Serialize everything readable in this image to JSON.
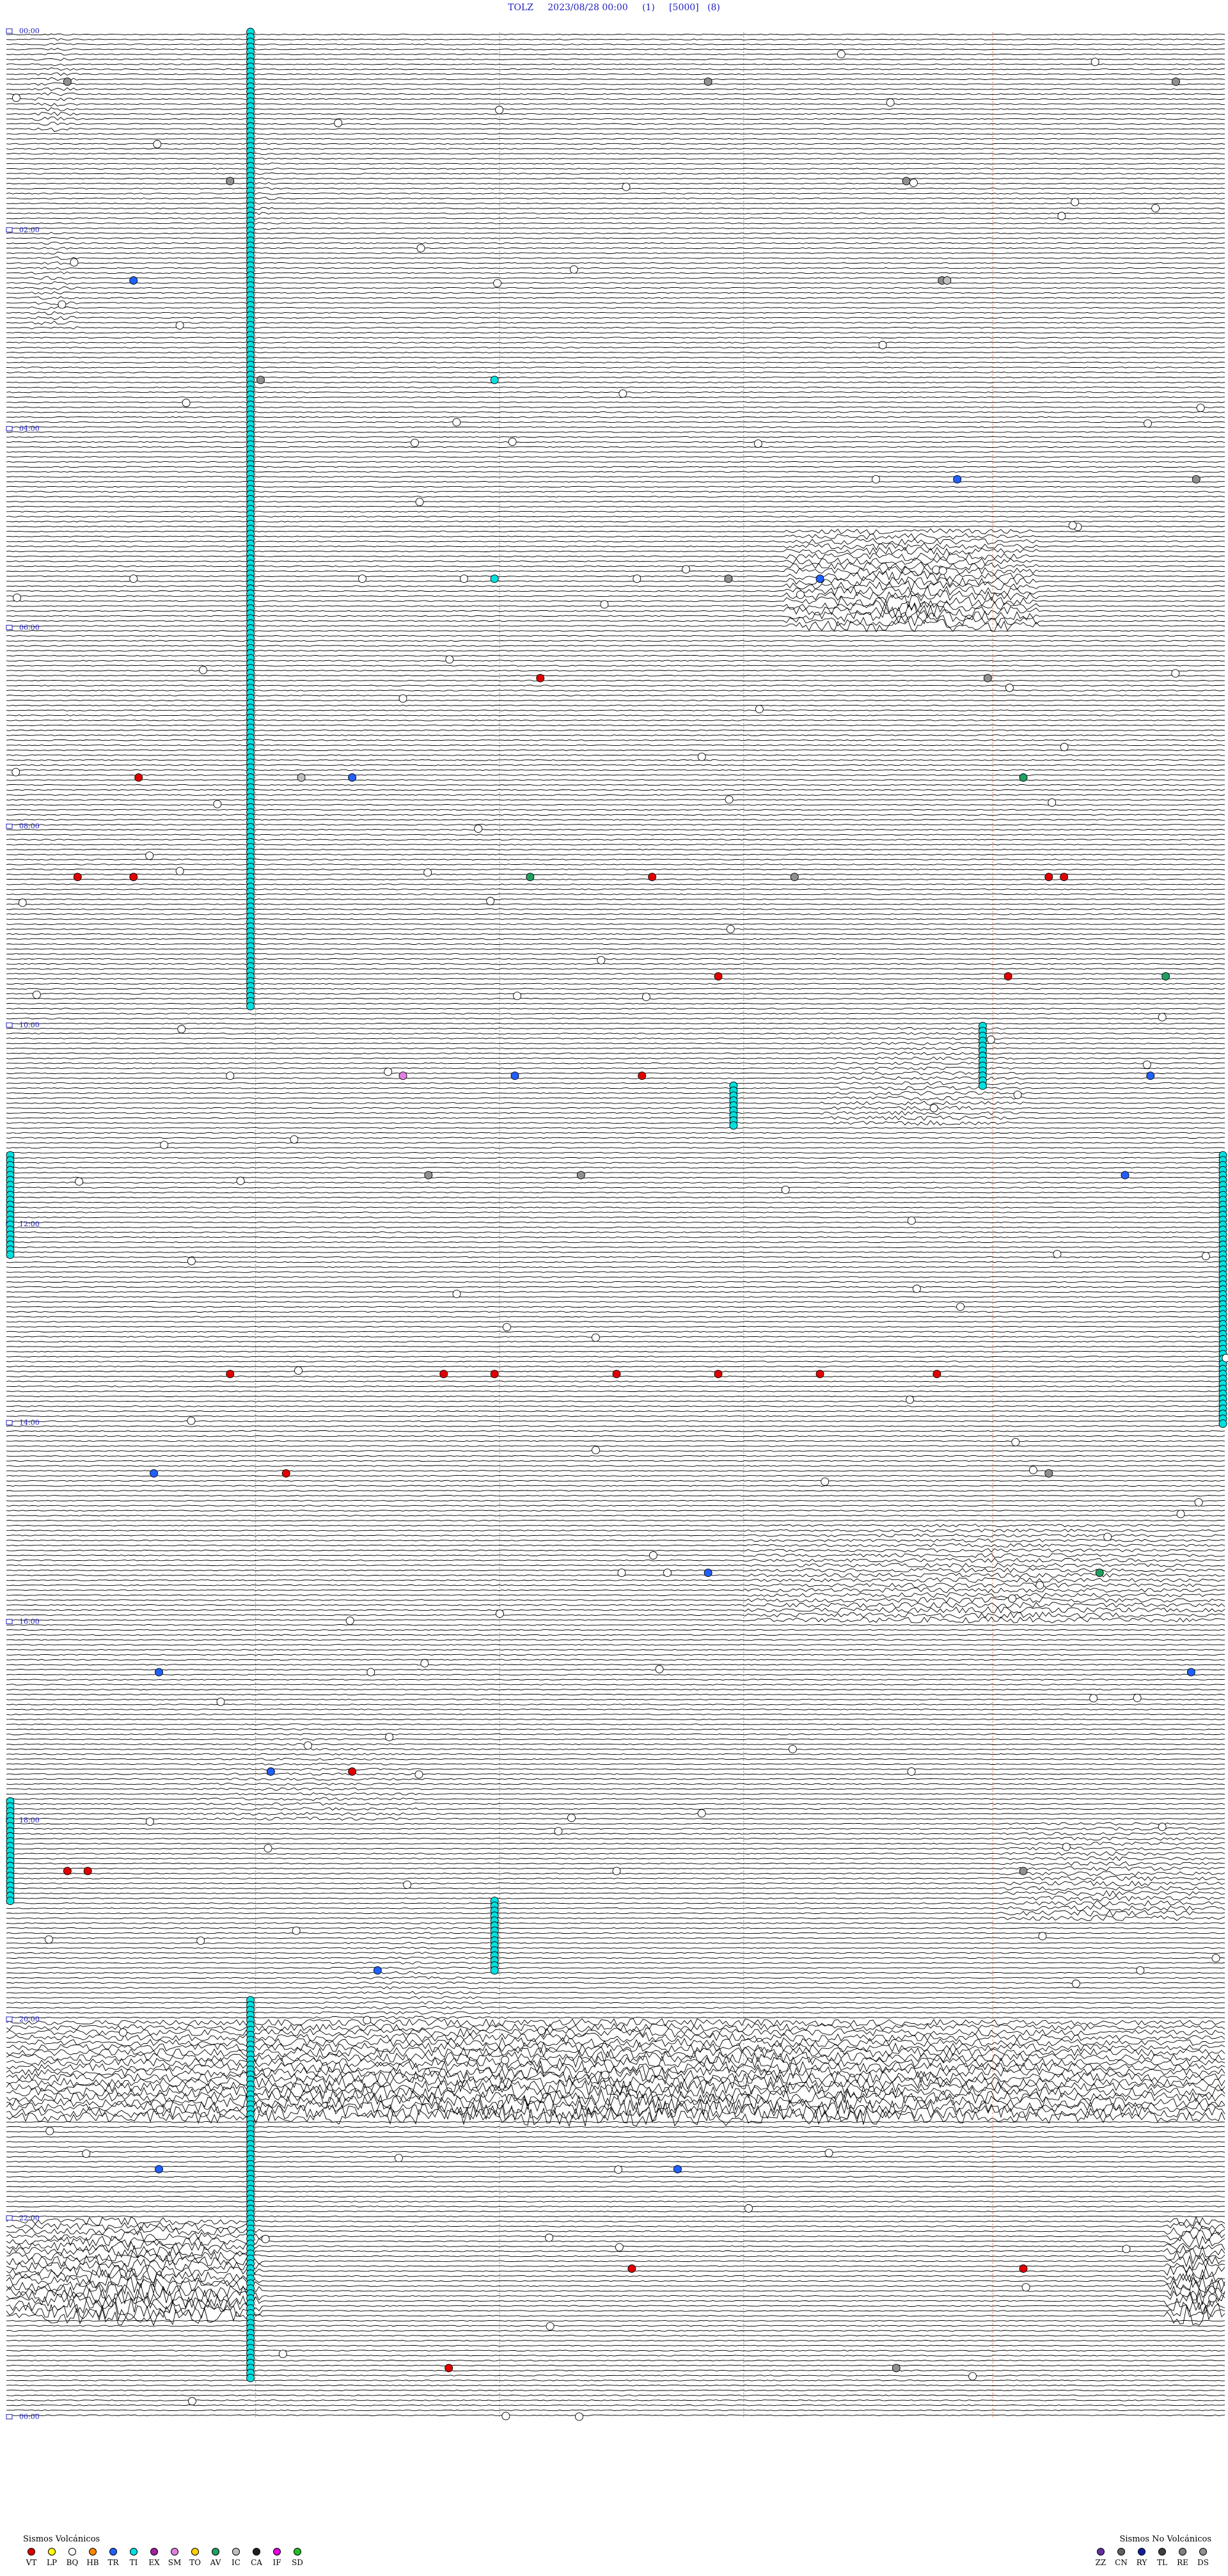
{
  "chart_data": {
    "type": "line",
    "title": "TOLZ     2023/08/28 00:00     (1)     [5000]   (8)",
    "station": "TOLZ",
    "date": "2023/08/28 00:00",
    "rows": 24,
    "hour_labels": [
      "00:00",
      "02:00",
      "04:00",
      "06:00",
      "08:00",
      "10:00",
      "12:00",
      "14:00",
      "16:00",
      "18:00",
      "20:00",
      "22:00",
      "00:00"
    ],
    "row_hours": 2,
    "trace_lines_per_row": 20,
    "bursts": [
      {
        "row": 0,
        "start": 0.5,
        "end": 1.4,
        "amp": 3
      },
      {
        "row": 1,
        "start": 4.8,
        "end": 5.4,
        "amp": 2
      },
      {
        "row": 2,
        "start": 0.5,
        "end": 1.4,
        "amp": 3
      },
      {
        "row": 5,
        "start": 15.3,
        "end": 20.3,
        "amp": 9
      },
      {
        "row": 10,
        "start": 16.0,
        "end": 20.0,
        "amp": 3
      },
      {
        "row": 15,
        "start": 14.5,
        "end": 24,
        "amp": 4
      },
      {
        "row": 17,
        "start": 3.5,
        "end": 8.5,
        "amp": 2
      },
      {
        "row": 18,
        "start": 19.5,
        "end": 24,
        "amp": 4
      },
      {
        "row": 19,
        "start": 6.0,
        "end": 10.0,
        "amp": 2
      },
      {
        "row": 20,
        "start": 0.0,
        "end": 24,
        "amp": 11
      },
      {
        "row": 22,
        "start": 0.0,
        "end": 5.0,
        "amp": 12
      },
      {
        "row": 22,
        "start": 22.8,
        "end": 24,
        "amp": 14
      }
    ],
    "events": [
      {
        "hour": 1.2,
        "row": 0,
        "type": "DS"
      },
      {
        "hour": 13.8,
        "row": 0,
        "type": "DS"
      },
      {
        "hour": 23.0,
        "row": 0,
        "type": "DS"
      },
      {
        "hour": 4.4,
        "row": 1,
        "type": "DS"
      },
      {
        "hour": 17.7,
        "row": 1,
        "type": "DS"
      },
      {
        "hour": 2.5,
        "row": 2,
        "type": "TR"
      },
      {
        "hour": 18.4,
        "row": 2,
        "type": "DS"
      },
      {
        "hour": 18.5,
        "row": 2,
        "type": "IC"
      },
      {
        "hour": 5.0,
        "row": 3,
        "type": "DS"
      },
      {
        "hour": 9.6,
        "row": 3,
        "type": "TI"
      },
      {
        "hour": 17.1,
        "row": 4,
        "type": "BQ"
      },
      {
        "hour": 18.7,
        "row": 4,
        "type": "TR"
      },
      {
        "hour": 23.4,
        "row": 4,
        "type": "DS"
      },
      {
        "hour": 9.6,
        "row": 5,
        "type": "TI"
      },
      {
        "hour": 14.2,
        "row": 5,
        "type": "DS"
      },
      {
        "hour": 16.0,
        "row": 5,
        "type": "TR"
      },
      {
        "hour": 2.5,
        "row": 5,
        "type": "BQ"
      },
      {
        "hour": 7.0,
        "row": 5,
        "type": "BQ"
      },
      {
        "hour": 9.0,
        "row": 5,
        "type": "BQ"
      },
      {
        "hour": 12.4,
        "row": 5,
        "type": "BQ"
      },
      {
        "hour": 19.3,
        "row": 6,
        "type": "DS"
      },
      {
        "hour": 10.5,
        "row": 6,
        "type": "VT"
      },
      {
        "hour": 2.6,
        "row": 7,
        "type": "VT"
      },
      {
        "hour": 6.8,
        "row": 7,
        "type": "TR"
      },
      {
        "hour": 5.8,
        "row": 7,
        "type": "IC"
      },
      {
        "hour": 20.0,
        "row": 7,
        "type": "AV"
      },
      {
        "hour": 10.3,
        "row": 8,
        "type": "AV"
      },
      {
        "hour": 15.5,
        "row": 8,
        "type": "DS"
      },
      {
        "hour": 20.5,
        "row": 8,
        "type": "VT"
      },
      {
        "hour": 1.4,
        "row": 8,
        "type": "VT"
      },
      {
        "hour": 2.5,
        "row": 8,
        "type": "VT"
      },
      {
        "hour": 12.7,
        "row": 8,
        "type": "VT"
      },
      {
        "hour": 20.8,
        "row": 8,
        "type": "VT"
      },
      {
        "hour": 19.7,
        "row": 9,
        "type": "VT"
      },
      {
        "hour": 14.0,
        "row": 9,
        "type": "VT"
      },
      {
        "hour": 22.8,
        "row": 9,
        "type": "AV"
      },
      {
        "hour": 10.0,
        "row": 10,
        "type": "TR"
      },
      {
        "hour": 12.5,
        "row": 10,
        "type": "VT"
      },
      {
        "hour": 7.8,
        "row": 10,
        "type": "SM"
      },
      {
        "hour": 4.4,
        "row": 10,
        "type": "BQ"
      },
      {
        "hour": 22.5,
        "row": 10,
        "type": "TR"
      },
      {
        "hour": 8.3,
        "row": 11,
        "type": "DS"
      },
      {
        "hour": 22.0,
        "row": 11,
        "type": "TR"
      },
      {
        "hour": 11.3,
        "row": 11,
        "type": "DS"
      },
      {
        "hour": 4.4,
        "row": 13,
        "type": "VT"
      },
      {
        "hour": 8.6,
        "row": 13,
        "type": "VT"
      },
      {
        "hour": 9.6,
        "row": 13,
        "type": "VT"
      },
      {
        "hour": 12.0,
        "row": 13,
        "type": "VT"
      },
      {
        "hour": 14.0,
        "row": 13,
        "type": "VT"
      },
      {
        "hour": 16.0,
        "row": 13,
        "type": "VT"
      },
      {
        "hour": 18.3,
        "row": 13,
        "type": "VT"
      },
      {
        "hour": 20.5,
        "row": 14,
        "type": "DS"
      },
      {
        "hour": 5.5,
        "row": 14,
        "type": "VT"
      },
      {
        "hour": 2.9,
        "row": 14,
        "type": "TR"
      },
      {
        "hour": 12.1,
        "row": 15,
        "type": "BQ"
      },
      {
        "hour": 13.0,
        "row": 15,
        "type": "BQ"
      },
      {
        "hour": 21.5,
        "row": 15,
        "type": "AV"
      },
      {
        "hour": 13.8,
        "row": 15,
        "type": "TR"
      },
      {
        "hour": 3.0,
        "row": 16,
        "type": "TR"
      },
      {
        "hour": 23.3,
        "row": 16,
        "type": "TR"
      },
      {
        "hour": 6.8,
        "row": 17,
        "type": "VT"
      },
      {
        "hour": 5.2,
        "row": 17,
        "type": "TR"
      },
      {
        "hour": 17.8,
        "row": 17,
        "type": "BQ"
      },
      {
        "hour": 1.2,
        "row": 18,
        "type": "VT"
      },
      {
        "hour": 1.6,
        "row": 18,
        "type": "VT"
      },
      {
        "hour": 20.0,
        "row": 18,
        "type": "DS"
      },
      {
        "hour": 12.0,
        "row": 18,
        "type": "BQ"
      },
      {
        "hour": 7.3,
        "row": 19,
        "type": "TR"
      },
      {
        "hour": 22.3,
        "row": 19,
        "type": "BQ"
      },
      {
        "hour": 13.2,
        "row": 21,
        "type": "TR"
      },
      {
        "hour": 3.0,
        "row": 21,
        "type": "TR"
      },
      {
        "hour": 12.3,
        "row": 22,
        "type": "VT"
      },
      {
        "hour": 20.0,
        "row": 22,
        "type": "VT"
      },
      {
        "hour": 8.7,
        "row": 23,
        "type": "VT"
      },
      {
        "hour": 17.5,
        "row": 23,
        "type": "DS"
      }
    ],
    "cyan_columns": [
      {
        "hour": 4.8,
        "row_from": 0,
        "row_to": 9.8
      },
      {
        "hour": 4.8,
        "row_from": 19.8,
        "row_to": 23.6
      },
      {
        "hour": 19.2,
        "row_from": 10.0,
        "row_to": 10.6
      },
      {
        "hour": 14.3,
        "row_from": 10.6,
        "row_to": 11.0
      },
      {
        "hour": 0.0,
        "row_from": 11.3,
        "row_to": 12.3
      },
      {
        "hour": 24.0,
        "row_from": 11.3,
        "row_to": 14.0
      },
      {
        "hour": 0.0,
        "row_from": 17.8,
        "row_to": 18.8
      },
      {
        "hour": 9.6,
        "row_from": 18.8,
        "row_to": 19.5
      }
    ],
    "vertical_markers_hours": [
      4.9,
      9.7,
      14.5,
      19.4
    ]
  },
  "legend_volcanic": {
    "title": "Sismos Volcánicos",
    "items": [
      {
        "code": "VT",
        "color": "#e00000"
      },
      {
        "code": "LP",
        "color": "#ffff00"
      },
      {
        "code": "BQ",
        "color": "#ffffff"
      },
      {
        "code": "HB",
        "color": "#ff8800"
      },
      {
        "code": "TR",
        "color": "#2060ff"
      },
      {
        "code": "TI",
        "color": "#00e0e0"
      },
      {
        "code": "EX",
        "color": "#a020a0"
      },
      {
        "code": "SM",
        "color": "#e080e0"
      },
      {
        "code": "TO",
        "color": "#ffd000"
      },
      {
        "code": "AV",
        "color": "#20a060"
      },
      {
        "code": "IC",
        "color": "#c0c0c0"
      },
      {
        "code": "CA",
        "color": "#202020"
      },
      {
        "code": "IF",
        "color": "#e000e0"
      },
      {
        "code": "SD",
        "color": "#20c020"
      }
    ]
  },
  "legend_nonvolcanic": {
    "title": "Sismos No Volcánicos",
    "items": [
      {
        "code": "ZZ",
        "color": "#6030a0"
      },
      {
        "code": "CN",
        "color": "#606060"
      },
      {
        "code": "RY",
        "color": "#1020a0"
      },
      {
        "code": "TL",
        "color": "#404040"
      },
      {
        "code": "RE",
        "color": "#808080"
      },
      {
        "code": "DS",
        "color": "#909090"
      }
    ]
  }
}
